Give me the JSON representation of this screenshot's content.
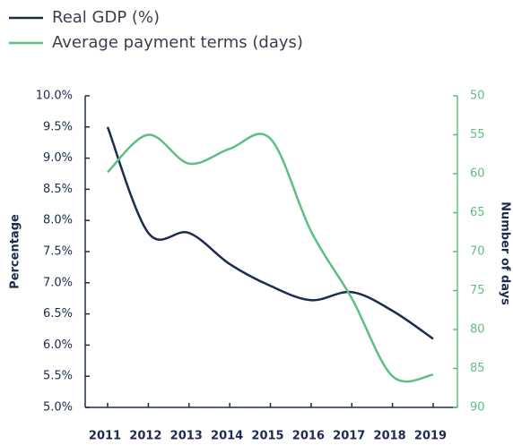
{
  "chart_data": {
    "type": "line",
    "categories": [
      "2011",
      "2012",
      "2013",
      "2014",
      "2015",
      "2016",
      "2017",
      "2018",
      "2019"
    ],
    "series": [
      {
        "name": "Real GDP (%)",
        "color": "#1d2b4f",
        "values": [
          9.5,
          7.8,
          7.8,
          7.3,
          6.95,
          6.72,
          6.85,
          6.55,
          6.1
        ]
      },
      {
        "name": "Average payment terms (days)",
        "color": "#5dbf82",
        "axis": "y2",
        "values": [
          59.8,
          55,
          58.7,
          56.8,
          55.5,
          67.4,
          76,
          86,
          85.8
        ]
      }
    ],
    "ylabel": "Percentage",
    "y2label": "Number of days",
    "ylim": [
      5,
      10
    ],
    "yticks": [
      {
        "value": 5,
        "label": "5.0%"
      },
      {
        "value": 5.5,
        "label": "5.5%"
      },
      {
        "value": 6,
        "label": "6.0%"
      },
      {
        "value": 6.5,
        "label": "6.5%"
      },
      {
        "value": 7,
        "label": "7.0%"
      },
      {
        "value": 7.5,
        "label": "7.5%"
      },
      {
        "value": 8,
        "label": "8.0%"
      },
      {
        "value": 8.5,
        "label": "8.5%"
      },
      {
        "value": 9,
        "label": "9.0%"
      },
      {
        "value": 9.5,
        "label": "9.5%"
      },
      {
        "value": 10,
        "label": "10.0%"
      }
    ],
    "y2lim": [
      90,
      50
    ],
    "y2ticks": [
      50,
      55,
      60,
      65,
      70,
      75,
      80,
      85,
      90
    ],
    "legend": "top-left"
  }
}
